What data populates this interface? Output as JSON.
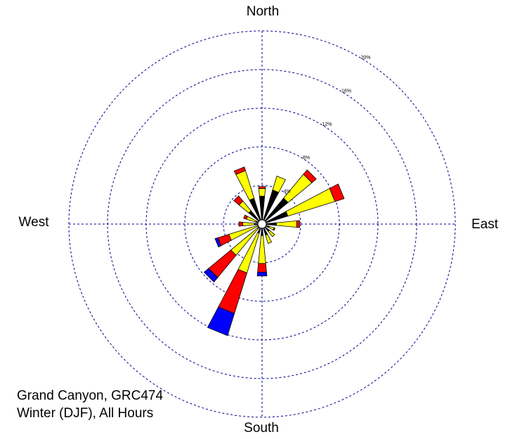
{
  "compass": {
    "north": "North",
    "east": "East",
    "south": "South",
    "west": "West"
  },
  "caption": {
    "line1": "Grand Canyon, GRC474",
    "line2": "Winter (DJF), All Hours"
  },
  "chart_data": {
    "type": "wind-rose",
    "title": "",
    "ring_labels": [
      {
        "value": 4,
        "label": "4%"
      },
      {
        "value": 8,
        "label": "8%"
      },
      {
        "value": 12,
        "label": "12%"
      },
      {
        "value": 16,
        "label": "16%"
      },
      {
        "value": 20,
        "label": "20%"
      }
    ],
    "max_value": 20,
    "speed_bins": [
      {
        "key": "b1",
        "color": "#000000"
      },
      {
        "key": "b2",
        "color": "#ffff00"
      },
      {
        "key": "b3",
        "color": "#ff0000"
      },
      {
        "key": "b4",
        "color": "#0000ff"
      }
    ],
    "directions": [
      {
        "dir": "N",
        "angle": 0,
        "values": [
          2.9,
          0.8,
          0.2,
          0
        ]
      },
      {
        "dir": "NNE",
        "angle": 22.5,
        "values": [
          3.7,
          1.5,
          0,
          0
        ]
      },
      {
        "dir": "NE",
        "angle": 45,
        "values": [
          3.5,
          3.2,
          0.6,
          0
        ]
      },
      {
        "dir": "ENE",
        "angle": 67.5,
        "values": [
          2.8,
          5.1,
          1.0,
          0
        ]
      },
      {
        "dir": "E",
        "angle": 90,
        "values": [
          1.5,
          2.1,
          0.3,
          0
        ]
      },
      {
        "dir": "ESE",
        "angle": 112.5,
        "values": [
          0.8,
          0.5,
          0.1,
          0
        ]
      },
      {
        "dir": "SE",
        "angle": 135,
        "values": [
          1.0,
          0.7,
          0,
          0
        ]
      },
      {
        "dir": "SSE",
        "angle": 157.5,
        "values": [
          1.2,
          0.9,
          0,
          0
        ]
      },
      {
        "dir": "S",
        "angle": 180,
        "values": [
          1.2,
          2.9,
          0.9,
          0.4
        ]
      },
      {
        "dir": "SSW",
        "angle": 202.5,
        "values": [
          1.0,
          4.3,
          4.4,
          2.4
        ]
      },
      {
        "dir": "SW",
        "angle": 225,
        "values": [
          0.6,
          3.6,
          3.0,
          0.6
        ]
      },
      {
        "dir": "WSW",
        "angle": 247.5,
        "values": [
          0.5,
          3.1,
          1.2,
          0.3
        ]
      },
      {
        "dir": "W",
        "angle": 270,
        "values": [
          0.8,
          1.2,
          0.4,
          0
        ]
      },
      {
        "dir": "WNW",
        "angle": 292.5,
        "values": [
          0.7,
          1.0,
          0.3,
          0
        ]
      },
      {
        "dir": "NW",
        "angle": 315,
        "values": [
          1.8,
          1.3,
          0.7,
          0
        ]
      },
      {
        "dir": "NNW",
        "angle": 337.5,
        "values": [
          2.8,
          3.0,
          0.4,
          0
        ]
      }
    ]
  }
}
